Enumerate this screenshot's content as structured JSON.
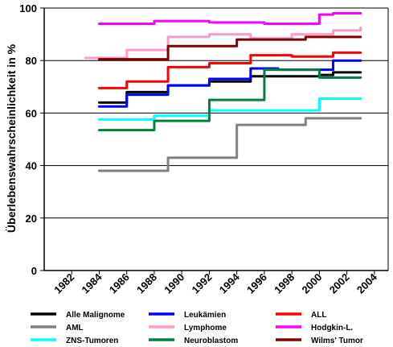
{
  "chart_data": {
    "type": "line",
    "title": "",
    "ylabel": "Überlebenswahrscheinlichkeit in %",
    "xlabel": "",
    "ylim": [
      0,
      100
    ],
    "yticks": [
      0,
      20,
      40,
      60,
      80,
      100
    ],
    "xlim": [
      1980,
      2005
    ],
    "xticks": [
      "1982",
      "1984",
      "1986",
      "1988",
      "1990",
      "1992",
      "1994",
      "1996",
      "1998",
      "2000",
      "2002",
      "2004"
    ],
    "grid": "horizontal",
    "legend_position": "bottom",
    "series": [
      {
        "name": "Alle Malignome",
        "color": "#000000",
        "x": [
          1984,
          1985,
          1986,
          1987,
          1988,
          1989,
          1990,
          1991,
          1992,
          1993,
          1994,
          1995,
          1996,
          1997,
          1998,
          1999,
          2000,
          2001,
          2002,
          2003
        ],
        "y": [
          64,
          64,
          68,
          68,
          68,
          70.5,
          70.5,
          70.5,
          72,
          72,
          72,
          74,
          74,
          74,
          74,
          74,
          74.5,
          75.5,
          75.5,
          75.5
        ]
      },
      {
        "name": "Leukämien",
        "color": "#0000ff",
        "x": [
          1984,
          1985,
          1986,
          1987,
          1988,
          1989,
          1990,
          1991,
          1992,
          1993,
          1994,
          1995,
          1996,
          1997,
          1998,
          1999,
          2000,
          2001,
          2002,
          2003
        ],
        "y": [
          62.5,
          62.5,
          67,
          67,
          67,
          70.5,
          70.5,
          70.5,
          73,
          73,
          73,
          77,
          77,
          76.5,
          76.5,
          76.5,
          76.5,
          80,
          80,
          80
        ]
      },
      {
        "name": "ALL",
        "color": "#ff0000",
        "x": [
          1984,
          1985,
          1986,
          1987,
          1988,
          1989,
          1990,
          1991,
          1992,
          1993,
          1994,
          1995,
          1996,
          1997,
          1998,
          1999,
          2000,
          2001,
          2002,
          2003
        ],
        "y": [
          69.5,
          69.5,
          72,
          72,
          72,
          77.5,
          77.5,
          77.5,
          79,
          79,
          79,
          82,
          82,
          82,
          81.5,
          81.5,
          81.5,
          83,
          83,
          83
        ]
      },
      {
        "name": "AML",
        "color": "#808080",
        "x": [
          1984,
          1985,
          1986,
          1987,
          1988,
          1989,
          1990,
          1991,
          1992,
          1993,
          1994,
          1995,
          1996,
          1997,
          1998,
          1999,
          2000,
          2001,
          2002,
          2003
        ],
        "y": [
          38,
          38,
          38,
          38,
          38,
          43,
          43,
          43,
          43,
          43,
          55.5,
          55.5,
          55.5,
          55.5,
          55.5,
          58,
          58,
          58,
          58,
          58
        ]
      },
      {
        "name": "Lymphome",
        "color": "#ff99cc",
        "x": [
          1983,
          1984,
          1985,
          1986,
          1987,
          1988,
          1989,
          1990,
          1991,
          1992,
          1993,
          1994,
          1995,
          1996,
          1997,
          1998,
          1999,
          2000,
          2001,
          2002,
          2003
        ],
        "y": [
          81,
          81,
          81,
          84,
          84,
          84,
          89,
          89,
          89,
          90,
          90,
          90,
          88.5,
          88.5,
          88.5,
          90,
          90,
          90,
          91.5,
          91.5,
          92.5
        ]
      },
      {
        "name": "Hodgkin-L.",
        "color": "#ff00ff",
        "x": [
          1984,
          1985,
          1986,
          1987,
          1988,
          1989,
          1990,
          1991,
          1992,
          1993,
          1994,
          1995,
          1996,
          1997,
          1998,
          1999,
          2000,
          2001,
          2002,
          2003
        ],
        "y": [
          94,
          94,
          94,
          94,
          95,
          95,
          95,
          95,
          94.5,
          94.5,
          94.5,
          94.5,
          94,
          94,
          94,
          94,
          97.5,
          98,
          98,
          98
        ]
      },
      {
        "name": "ZNS-Tumoren",
        "color": "#00ffff",
        "x": [
          1984,
          1985,
          1986,
          1987,
          1988,
          1989,
          1990,
          1991,
          1992,
          1993,
          1994,
          1995,
          1996,
          1997,
          1998,
          1999,
          2000,
          2001,
          2002,
          2003
        ],
        "y": [
          57.5,
          57.5,
          57.5,
          57.5,
          59,
          59,
          59,
          59,
          61,
          61,
          61,
          61,
          61,
          61,
          61,
          61,
          65.5,
          65.5,
          65.5,
          65.5
        ]
      },
      {
        "name": "Neuroblastom",
        "color": "#008040",
        "x": [
          1984,
          1985,
          1986,
          1987,
          1988,
          1989,
          1990,
          1991,
          1992,
          1993,
          1994,
          1995,
          1996,
          1997,
          1998,
          1999,
          2000,
          2001,
          2002,
          2003
        ],
        "y": [
          53.5,
          53.5,
          53.5,
          53.5,
          57,
          57,
          57,
          57,
          65,
          65,
          65,
          65,
          76.5,
          76.5,
          76.5,
          76.5,
          73.5,
          73.5,
          73.5,
          73.5
        ]
      },
      {
        "name": "Wilms' Tumor",
        "color": "#800000",
        "x": [
          1984,
          1985,
          1986,
          1987,
          1988,
          1989,
          1990,
          1991,
          1992,
          1993,
          1994,
          1995,
          1996,
          1997,
          1998,
          1999,
          2000,
          2001,
          2002,
          2003
        ],
        "y": [
          80.5,
          80.5,
          80.5,
          80.5,
          80.5,
          85.5,
          85.5,
          85.5,
          85.5,
          85.5,
          88,
          88,
          88,
          88,
          88,
          89,
          89,
          89,
          89,
          89
        ]
      }
    ]
  }
}
